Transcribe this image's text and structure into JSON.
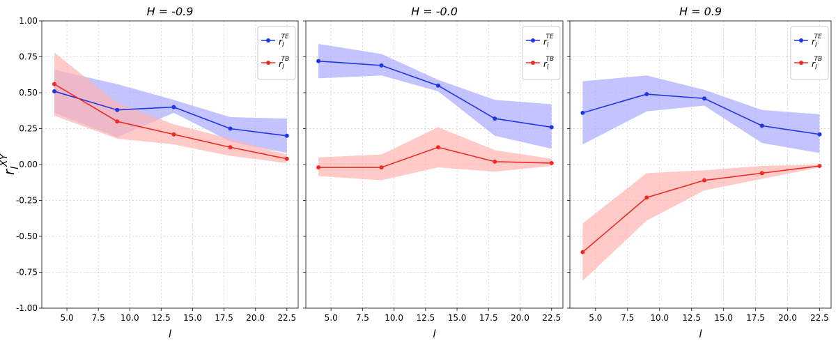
{
  "chart_data": [
    {
      "type": "line",
      "title": "H = -0.9",
      "xlabel": "l",
      "ylabel": "r_l^XY",
      "xlim": [
        3.0,
        23.4
      ],
      "ylim": [
        -1.0,
        1.0
      ],
      "x_ticks": [
        "5.0",
        "7.5",
        "10.0",
        "12.5",
        "15.0",
        "17.5",
        "20.0",
        "22.5"
      ],
      "y_ticks": [
        "1.00",
        "0.75",
        "0.50",
        "0.25",
        "0.00",
        "-0.25",
        "-0.50",
        "-0.75",
        "-1.00"
      ],
      "grid": true,
      "legend_position": "top-right",
      "x": [
        4.0,
        9.0,
        13.5,
        18.0,
        22.5
      ],
      "series": [
        {
          "name": "r_l^TE",
          "color": "#1f35e6",
          "band_color": "#aaaaff",
          "values": [
            0.51,
            0.38,
            0.4,
            0.25,
            0.2
          ],
          "lower": [
            0.36,
            0.19,
            0.36,
            0.16,
            0.08
          ],
          "upper": [
            0.66,
            0.56,
            0.45,
            0.33,
            0.32
          ]
        },
        {
          "name": "r_l^TB",
          "color": "#ee2b22",
          "band_color": "#ffb3b0",
          "values": [
            0.56,
            0.3,
            0.21,
            0.12,
            0.04
          ],
          "lower": [
            0.34,
            0.18,
            0.14,
            0.06,
            0.01
          ],
          "upper": [
            0.78,
            0.43,
            0.28,
            0.18,
            0.07
          ]
        }
      ]
    },
    {
      "type": "line",
      "title": "H = -0.0",
      "xlabel": "l",
      "ylabel": "",
      "xlim": [
        3.0,
        23.4
      ],
      "ylim": [
        -1.0,
        1.0
      ],
      "x_ticks": [
        "5.0",
        "7.5",
        "10.0",
        "12.5",
        "15.0",
        "17.5",
        "20.0",
        "22.5"
      ],
      "y_ticks": [],
      "grid": true,
      "legend_position": "top-right",
      "x": [
        4.0,
        9.0,
        13.5,
        18.0,
        22.5
      ],
      "series": [
        {
          "name": "r_l^TE",
          "color": "#1f35e6",
          "band_color": "#aaaaff",
          "values": [
            0.72,
            0.69,
            0.55,
            0.32,
            0.26
          ],
          "lower": [
            0.6,
            0.62,
            0.51,
            0.2,
            0.11
          ],
          "upper": [
            0.84,
            0.77,
            0.59,
            0.45,
            0.42
          ]
        },
        {
          "name": "r_l^TB",
          "color": "#ee2b22",
          "band_color": "#ffb3b0",
          "values": [
            -0.02,
            -0.02,
            0.12,
            0.02,
            0.01
          ],
          "lower": [
            -0.08,
            -0.11,
            -0.02,
            -0.05,
            -0.01
          ],
          "upper": [
            0.05,
            0.07,
            0.26,
            0.1,
            0.04
          ]
        }
      ]
    },
    {
      "type": "line",
      "title": "H = 0.9",
      "xlabel": "l",
      "ylabel": "",
      "xlim": [
        3.0,
        23.4
      ],
      "ylim": [
        -1.0,
        1.0
      ],
      "x_ticks": [
        "5.0",
        "7.5",
        "10.0",
        "12.5",
        "15.0",
        "17.5",
        "20.0",
        "22.5"
      ],
      "y_ticks": [],
      "grid": true,
      "legend_position": "top-right",
      "x": [
        4.0,
        9.0,
        13.5,
        18.0,
        22.5
      ],
      "series": [
        {
          "name": "r_l^TE",
          "color": "#1f35e6",
          "band_color": "#aaaaff",
          "values": [
            0.36,
            0.49,
            0.46,
            0.27,
            0.21
          ],
          "lower": [
            0.14,
            0.37,
            0.41,
            0.15,
            0.08
          ],
          "upper": [
            0.58,
            0.62,
            0.52,
            0.38,
            0.35
          ]
        },
        {
          "name": "r_l^TB",
          "color": "#ee2b22",
          "band_color": "#ffb3b0",
          "values": [
            -0.61,
            -0.23,
            -0.11,
            -0.06,
            -0.01
          ],
          "lower": [
            -0.81,
            -0.39,
            -0.18,
            -0.1,
            -0.02
          ],
          "upper": [
            -0.41,
            -0.06,
            -0.04,
            -0.01,
            0.0
          ]
        }
      ]
    }
  ]
}
